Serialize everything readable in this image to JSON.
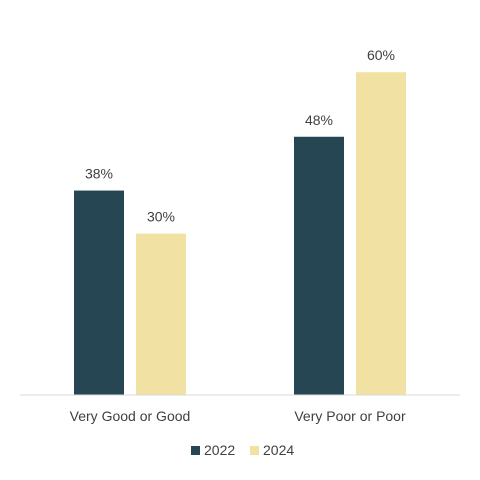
{
  "chart_data": {
    "type": "bar",
    "categories": [
      "Very Good or Good",
      "Very Poor or Poor"
    ],
    "series": [
      {
        "name": "2022",
        "values": [
          38,
          48
        ],
        "labels": [
          "38%",
          "48%"
        ],
        "color": "#264653"
      },
      {
        "name": "2024",
        "values": [
          30,
          60
        ],
        "labels": [
          "30%",
          "60%"
        ],
        "color": "#f1e2a4"
      }
    ],
    "ylim": [
      0,
      70
    ],
    "grid": false,
    "legend": "bottom-center"
  }
}
